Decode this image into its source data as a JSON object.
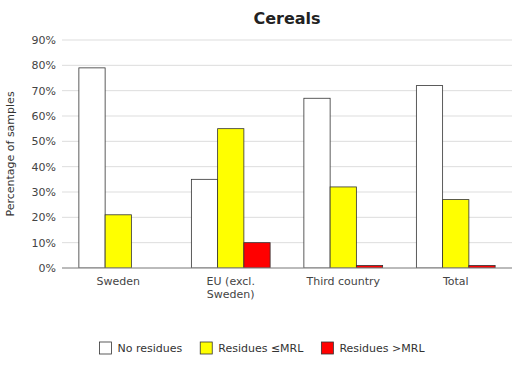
{
  "chart_data": {
    "type": "bar",
    "title": "Cereals",
    "ylabel": "Percentage of samples",
    "categories": [
      "Sweden",
      "EU (excl.\nSweden)",
      "Third country",
      "Total"
    ],
    "series": [
      {
        "name": "No residues",
        "color": "white",
        "values": [
          79,
          35,
          67,
          72
        ]
      },
      {
        "name": "Residues ≤MRL",
        "color": "yellow",
        "values": [
          21,
          55,
          32,
          27
        ]
      },
      {
        "name": "Residues >MRL",
        "color": "red",
        "values": [
          0,
          10,
          1,
          1
        ]
      }
    ],
    "ylim": [
      0,
      90
    ],
    "yticks": [
      {
        "value": 0,
        "label": "0%"
      },
      {
        "value": 10,
        "label": "10%"
      },
      {
        "value": 20,
        "label": "20%"
      },
      {
        "value": 30,
        "label": "30%"
      },
      {
        "value": 40,
        "label": "40%"
      },
      {
        "value": 50,
        "label": "50%"
      },
      {
        "value": 60,
        "label": "60%"
      },
      {
        "value": 70,
        "label": "70%"
      },
      {
        "value": 80,
        "label": "80%"
      },
      {
        "value": 90,
        "label": "90%"
      }
    ],
    "grid": true,
    "legend": "bottom"
  }
}
